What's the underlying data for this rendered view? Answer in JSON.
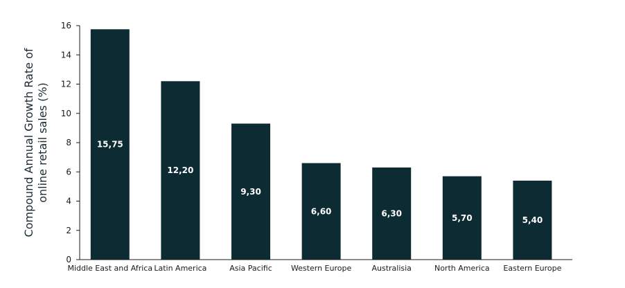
{
  "chart_data": {
    "type": "bar",
    "categories": [
      "Middle East and Africa",
      "Latin America",
      "Asia Pacific",
      "Western Europe",
      "Australisia",
      "North America",
      "Eastern Europe"
    ],
    "values": [
      15.75,
      12.2,
      9.3,
      6.6,
      6.3,
      5.7,
      5.4
    ],
    "data_labels": [
      "15,75",
      "12,20",
      "9,30",
      "6,60",
      "6,30",
      "5,70",
      "5,40"
    ],
    "title": "",
    "xlabel": "",
    "ylabel_lines": [
      "Compound Annual Growth Rate of",
      "online retail sales (%)"
    ],
    "ylim": [
      0,
      16
    ],
    "yticks": [
      0,
      2,
      4,
      6,
      8,
      10,
      12,
      14,
      16
    ],
    "grid": false,
    "legend": false,
    "bar_color": "#0d2b33"
  }
}
